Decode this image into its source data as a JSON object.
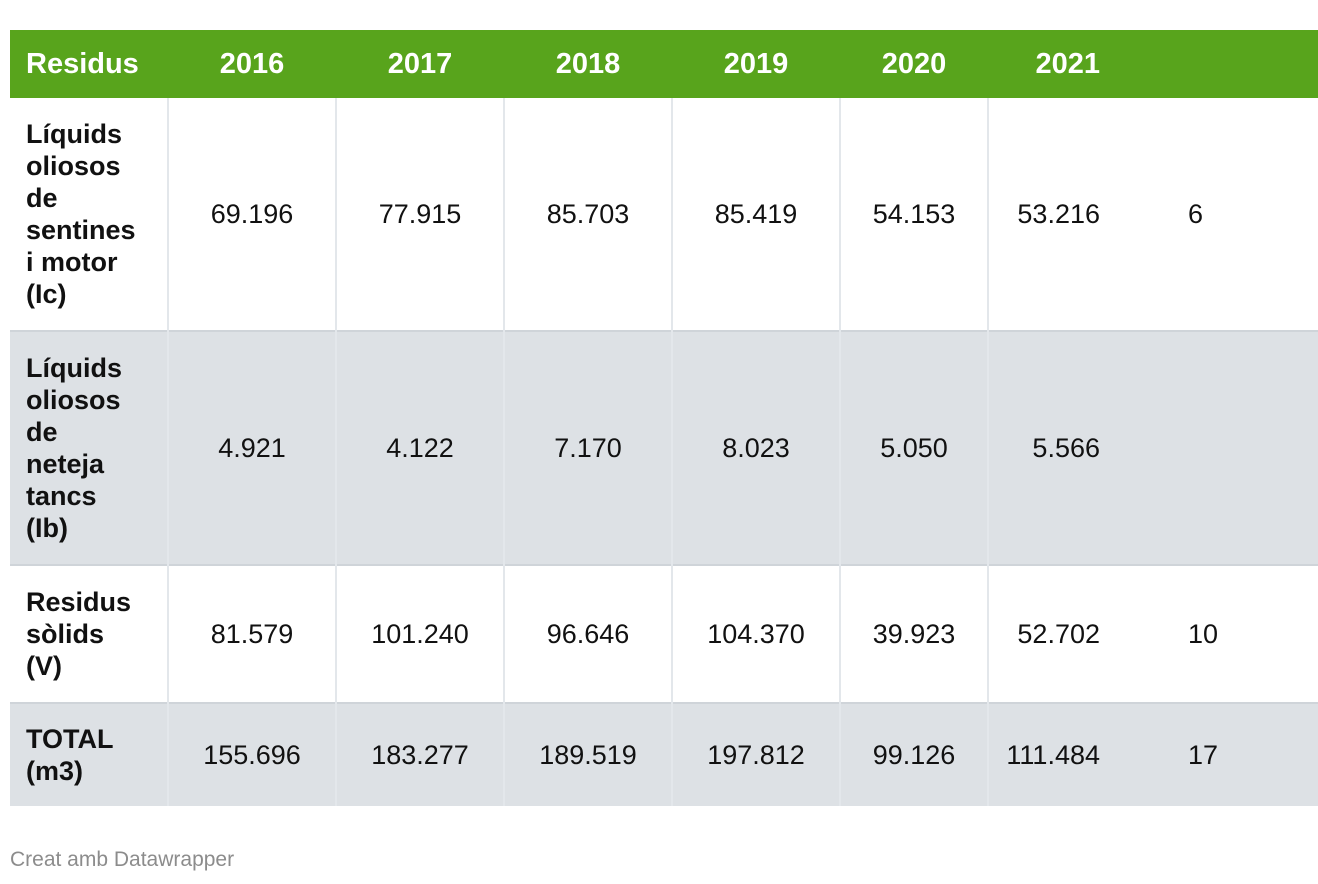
{
  "chart_data": {
    "type": "table",
    "columns": [
      "Residus",
      "2016",
      "2017",
      "2018",
      "2019",
      "2020",
      "2021"
    ],
    "rows": [
      {
        "label_lines": [
          "Líquids",
          "oliosos",
          "de",
          "sentines",
          "i motor",
          "(Ic)"
        ],
        "values": [
          "69.196",
          "77.915",
          "85.703",
          "85.419",
          "54.153",
          "53.216"
        ],
        "truncated_next": "6"
      },
      {
        "label_lines": [
          "Líquids",
          "oliosos",
          "de",
          "neteja",
          "tancs",
          "(Ib)"
        ],
        "values": [
          "4.921",
          "4.122",
          "7.170",
          "8.023",
          "5.050",
          "5.566"
        ],
        "truncated_next": ""
      },
      {
        "label_lines": [
          "Residus",
          "sòlids",
          "(V)"
        ],
        "values": [
          "81.579",
          "101.240",
          "96.646",
          "104.370",
          "39.923",
          "52.702"
        ],
        "truncated_next": "10"
      },
      {
        "label_lines": [
          "TOTAL",
          "(m3)"
        ],
        "values": [
          "155.696",
          "183.277",
          "189.519",
          "197.812",
          "99.126",
          "111.484"
        ],
        "truncated_next": "17"
      }
    ],
    "colors": {
      "header_bg": "#58a41c",
      "header_text": "#ffffff",
      "stripe_bg": "#dde1e5"
    }
  },
  "footer": {
    "credit": "Creat amb Datawrapper"
  }
}
